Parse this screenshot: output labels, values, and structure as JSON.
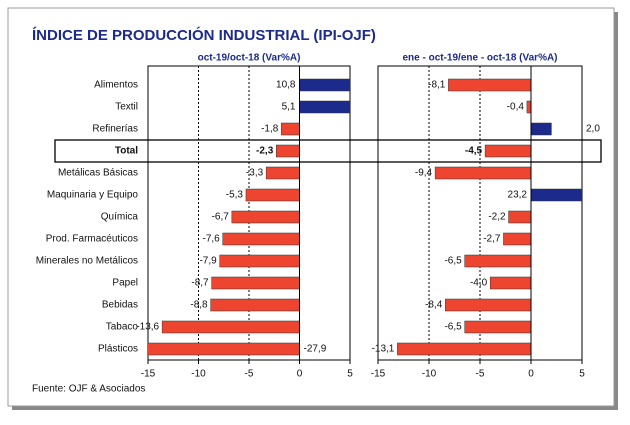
{
  "title": "ÍNDICE DE PRODUCCIÓN INDUSTRIAL (IPI-OJF)",
  "source": "Fuente: OJF & Asociados",
  "highlight": "Total",
  "chart_data": [
    {
      "type": "bar",
      "orientation": "horizontal",
      "subtitle": "oct-19/oct-18  (Var%A)",
      "categories": [
        "Alimentos",
        "Textil",
        "Refinerías",
        "Total",
        "Metálicas Básicas",
        "Maquinaria y Equipo",
        "Química",
        "Prod. Farmacéuticos",
        "Minerales no Metálicos",
        "Papel",
        "Bebidas",
        "Tabaco",
        "Plásticos"
      ],
      "values": [
        10.8,
        5.1,
        -1.8,
        -2.3,
        -3.3,
        -5.3,
        -6.7,
        -7.6,
        -7.9,
        -8.7,
        -8.8,
        -13.6,
        -27.9
      ],
      "value_labels": [
        "10,8",
        "5,1",
        "-1,8",
        "-2,3",
        "-3,3",
        "-5,3",
        "-6,7",
        "-7,6",
        "-7,9",
        "-8,7",
        "-8,8",
        "-13,6",
        "-27,9"
      ],
      "xlim": [
        -15,
        5
      ],
      "xticks": [
        -15,
        -10,
        -5,
        0,
        5
      ],
      "positive_color": "#1c2a8c",
      "negative_color": "#ee4530",
      "grid": true
    },
    {
      "type": "bar",
      "orientation": "horizontal",
      "subtitle": "ene - oct-19/ene - oct-18  (Var%A)",
      "values": [
        -8.1,
        -0.4,
        2.0,
        -4.5,
        -9.4,
        23.2,
        -2.2,
        -2.7,
        -6.5,
        -4.0,
        -8.4,
        -6.5,
        -13.1
      ],
      "value_labels": [
        "-8,1",
        "-0,4",
        "2,0",
        "-4,5",
        "-9,4",
        "23,2",
        "-2,2",
        "-2,7",
        "-6,5",
        "-4,0",
        "-8,4",
        "-6,5",
        "-13,1"
      ],
      "xlim": [
        -15,
        5
      ],
      "xticks": [
        -15,
        -10,
        -5,
        0,
        5
      ],
      "positive_color": "#1c2a8c",
      "negative_color": "#ee4530",
      "grid": true
    }
  ]
}
